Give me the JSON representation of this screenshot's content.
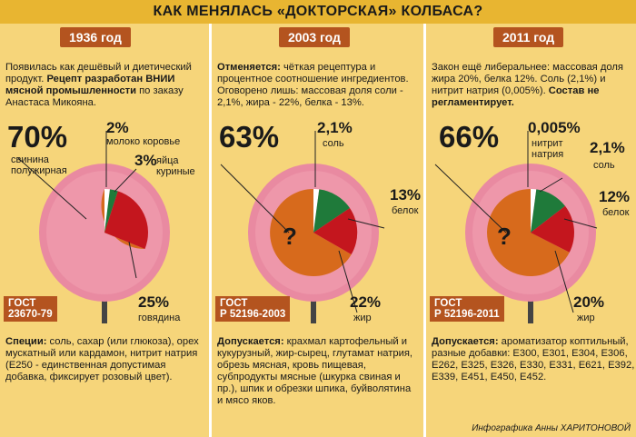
{
  "title": "КАК МЕНЯЛАСЬ «ДОКТОРСКАЯ» КОЛБАСА?",
  "credit": "Инфографика Анны ХАРИТОНОВОЙ",
  "colors": {
    "background": "#f6d57a",
    "banner": "#e8b531",
    "accent": "#b4541f",
    "pork": "#d76a1c",
    "beef": "#c4161e",
    "protein": "#1f7a3a",
    "sausage": "#e98aa1"
  },
  "columns": [
    {
      "year": "1936 год",
      "intro_plain": "Появилась как дешёвый и диетический продукт. ",
      "intro_bold": "Рецепт разработан ВНИИ мясной промышленности",
      "intro_tail": " по заказу Анастаса Микояна.",
      "main_pct": "70%",
      "main_label": "свинина полужирная",
      "items": [
        {
          "pct": "2%",
          "label": "молоко коровье"
        },
        {
          "pct": "3%",
          "label": "яйца куриные"
        },
        {
          "pct": "25%",
          "label": "говядина"
        }
      ],
      "gost": [
        "ГОСТ",
        "23670-79"
      ],
      "bottom_bold": "Специи:",
      "bottom_text": " соль, сахар (или глюкоза), орех мускатный или кардамон, нитрит натрия (Е250 - единственная допустимая добавка, фиксирует розовый цвет)."
    },
    {
      "year": "2003 год",
      "intro_bold": "Отменяется:",
      "intro_text": " чёткая рецептура и процентное соотношение ингредиентов. Оговорено лишь: массовая доля соли - 2,1%, жира - 22%, белка - 13%.",
      "main_pct": "63%",
      "question": "?",
      "items": [
        {
          "pct": "2,1%",
          "label": "соль"
        },
        {
          "pct": "13%",
          "label": "белок"
        },
        {
          "pct": "22%",
          "label": "жир"
        }
      ],
      "gost": [
        "ГОСТ",
        "Р 52196-2003"
      ],
      "bottom_bold": "Допускается:",
      "bottom_text": " крахмал картофельный и кукурузный, жир-сырец, глутамат натрия, обрезь мясная, кровь пищевая, субпродукты мясные (шкурка свиная и пр.), шпик и обрезки шпика, буйволятина и мясо яков."
    },
    {
      "year": "2011 год",
      "intro_text": "Закон ещё либеральнее: массовая доля жира 20%, белка 12%. Соль (2,1%) и нитрит натрия (0,005%). ",
      "intro_bold": "Состав не регламентирует.",
      "main_pct": "66%",
      "question": "?",
      "items": [
        {
          "pct": "0,005%",
          "label": "нитрит натрия"
        },
        {
          "pct": "2,1%",
          "label": "соль"
        },
        {
          "pct": "12%",
          "label": "белок"
        },
        {
          "pct": "20%",
          "label": "жир"
        }
      ],
      "gost": [
        "ГОСТ",
        "Р 52196-2011"
      ],
      "bottom_bold": "Допускается:",
      "bottom_text": " ароматизатор коптильный, разные добавки: Е300, Е301, Е304, Е306, Е262, Е325, Е326, Е330, Е331, Е621, Е392, Е339, Е451, Е450, Е452."
    }
  ]
}
